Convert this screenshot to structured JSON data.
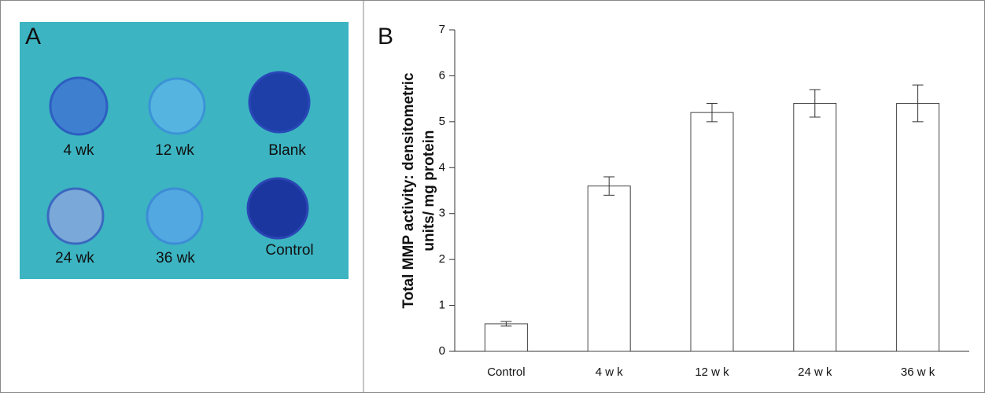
{
  "panel_a": {
    "label": "A",
    "wells": [
      "4 wk",
      "12 wk",
      "Blank",
      "24 wk",
      "36 wk",
      "Control"
    ]
  },
  "chart_data": {
    "type": "bar",
    "panel_label": "B",
    "ylabel": [
      "Total MMP activity: densitometric",
      "units/ mg protein"
    ],
    "categories": [
      "Control",
      "4 w k",
      "12 w k",
      "24 w k",
      "36 w k"
    ],
    "values": [
      0.6,
      3.6,
      5.2,
      5.4,
      5.4
    ],
    "errors": [
      0.05,
      0.2,
      0.2,
      0.3,
      0.4
    ],
    "color": "#ffffff",
    "ylim": [
      0,
      7
    ],
    "yticks": [
      0,
      1,
      2,
      3,
      4,
      5,
      6,
      7
    ]
  }
}
